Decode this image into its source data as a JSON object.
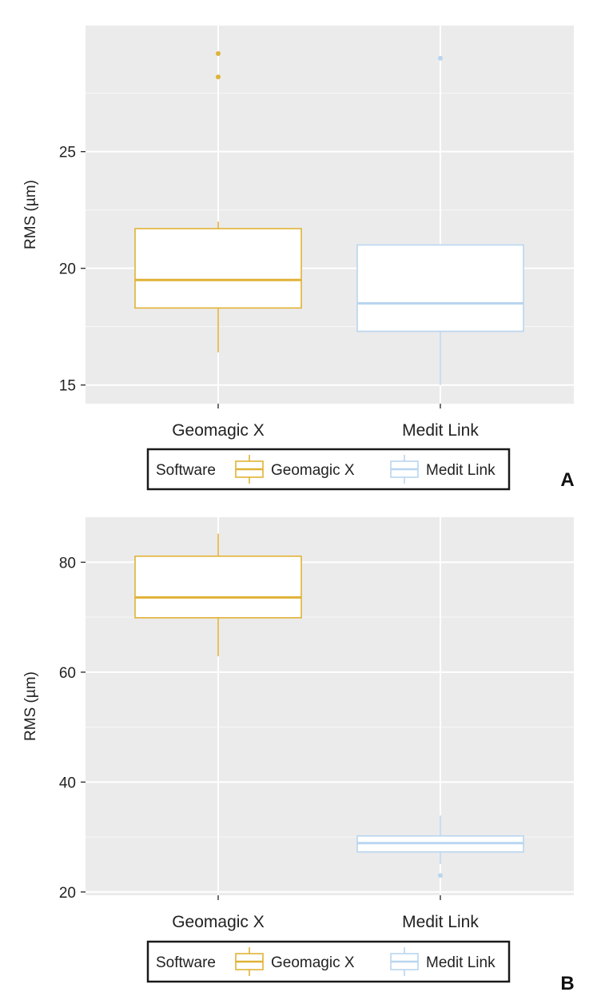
{
  "chart_data": [
    {
      "type": "box",
      "panel_label": "A",
      "ylabel": "RMS (µm)",
      "ylim": [
        14.2,
        30.4
      ],
      "yticks": [
        15,
        20,
        25
      ],
      "minor_gridlines": [
        17.5,
        22.5,
        27.5
      ],
      "categories": [
        "Geomagic X",
        "Medit Link"
      ],
      "grid": true,
      "legend": {
        "title": "Software",
        "position": "bottom",
        "entries": [
          "Geomagic X",
          "Medit Link"
        ]
      },
      "series": [
        {
          "name": "Geomagic X",
          "color": "#E0B236",
          "whisker_low": 16.4,
          "q1": 18.3,
          "median": 19.5,
          "q3": 21.7,
          "whisker_high": 22.0,
          "outliers": [
            28.2,
            29.2
          ]
        },
        {
          "name": "Medit Link",
          "color": "#B9D5F0",
          "whisker_low": 15.0,
          "q1": 17.3,
          "median": 18.5,
          "q3": 21.0,
          "whisker_high": 21.0,
          "outliers": [
            29.0
          ]
        }
      ]
    },
    {
      "type": "box",
      "panel_label": "B",
      "ylabel": "RMS (µm)",
      "ylim": [
        19.4,
        88.2
      ],
      "yticks": [
        20,
        40,
        60,
        80
      ],
      "minor_gridlines": [
        30,
        50,
        70
      ],
      "categories": [
        "Geomagic X",
        "Medit Link"
      ],
      "grid": true,
      "legend": {
        "title": "Software",
        "position": "bottom",
        "entries": [
          "Geomagic X",
          "Medit Link"
        ]
      },
      "series": [
        {
          "name": "Geomagic X",
          "color": "#E0B236",
          "whisker_low": 62.9,
          "q1": 69.9,
          "median": 73.6,
          "q3": 81.1,
          "whisker_high": 85.2,
          "outliers": []
        },
        {
          "name": "Medit Link",
          "color": "#B9D5F0",
          "whisker_low": 25.1,
          "q1": 27.3,
          "median": 28.9,
          "q3": 30.2,
          "whisker_high": 33.9,
          "outliers": [
            23.0
          ]
        }
      ]
    }
  ]
}
